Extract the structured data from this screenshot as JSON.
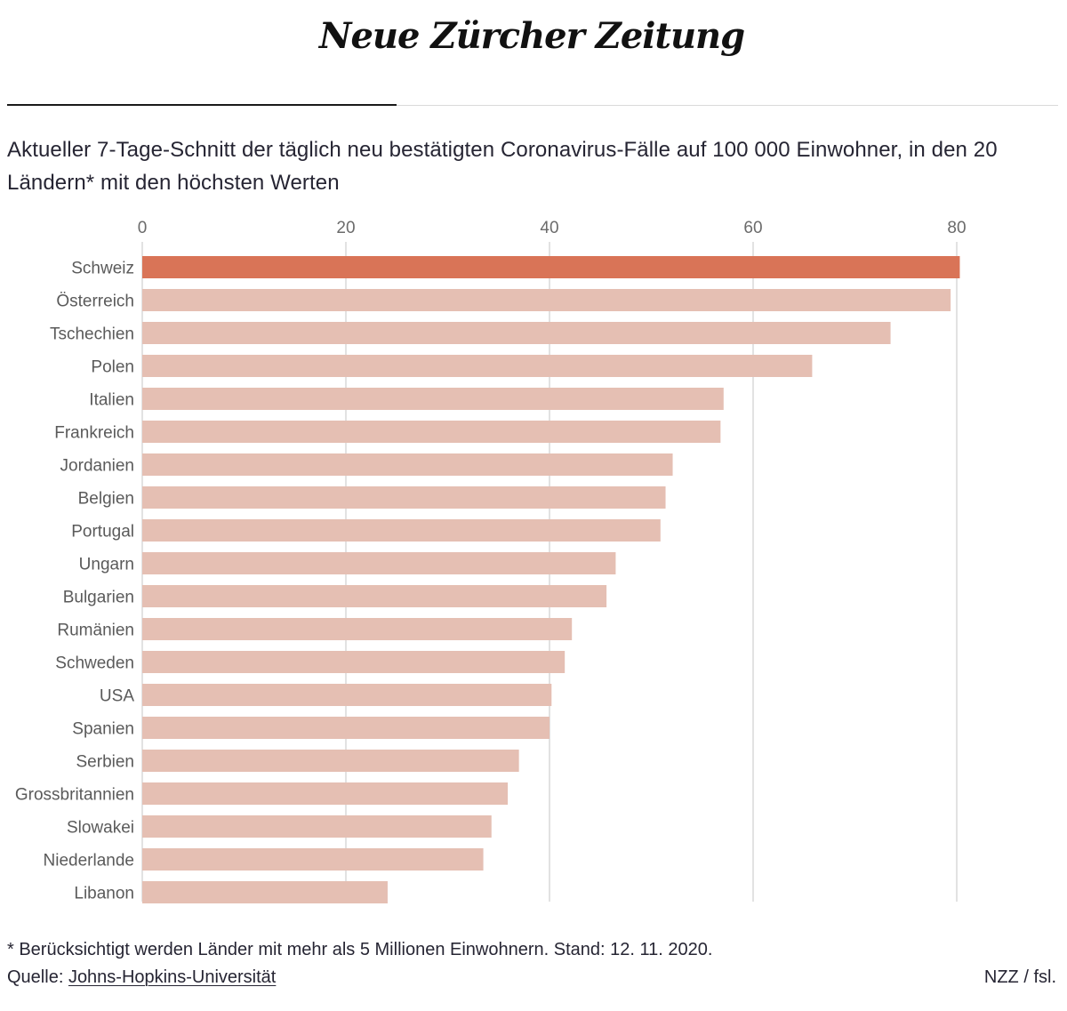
{
  "header": {
    "logo_text": "Neue Zürcher Zeitung"
  },
  "chart_data": {
    "type": "bar",
    "orientation": "horizontal",
    "title": "Aktueller 7-Tage-Schnitt der täglich neu bestätigten Coronavirus-Fälle auf 100 000 Einwohner, in den 20 Ländern* mit den höchsten Werten",
    "categories": [
      "Schweiz",
      "Österreich",
      "Tschechien",
      "Polen",
      "Italien",
      "Frankreich",
      "Jordanien",
      "Belgien",
      "Portugal",
      "Ungarn",
      "Bulgarien",
      "Rumänien",
      "Schweden",
      "USA",
      "Spanien",
      "Serbien",
      "Grossbritannien",
      "Slowakei",
      "Niederlande",
      "Libanon"
    ],
    "values": [
      80.3,
      79.4,
      73.5,
      65.8,
      57.1,
      56.8,
      52.1,
      51.4,
      50.9,
      46.5,
      45.6,
      42.2,
      41.5,
      40.2,
      40.0,
      37.0,
      35.9,
      34.3,
      33.5,
      24.1
    ],
    "highlight": "Schweiz",
    "xticks": [
      0,
      20,
      40,
      60,
      80
    ],
    "xlim": [
      0,
      90
    ],
    "grid": true,
    "colors": {
      "highlight": "#d97457",
      "bar": "#e5bfb3",
      "grid": "#d9d9d9",
      "tick_text": "#6b6b6b",
      "label_text": "#5a5a5a"
    }
  },
  "footnote": "* Berücksichtigt werden Länder mit mehr als 5 Millionen Einwohnern. Stand: 12. 11. 2020.",
  "source": {
    "prefix": "Quelle: ",
    "link_text": "Johns-Hopkins-Universität"
  },
  "credit": "NZZ / fsl."
}
